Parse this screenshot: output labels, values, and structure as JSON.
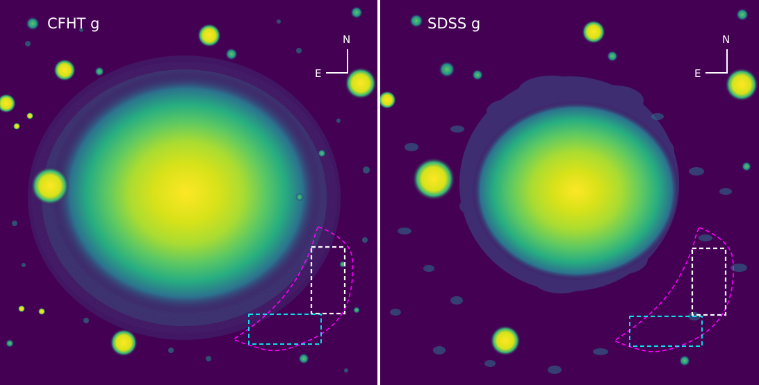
{
  "panels": [
    {
      "title": "CFHT g",
      "compass": {
        "north": "N",
        "east": "E"
      }
    },
    {
      "title": "SDSS g",
      "compass": {
        "north": "N",
        "east": "E"
      }
    }
  ],
  "colors": {
    "background": "#440154",
    "galaxy_core": "#fde725",
    "galaxy_mid": "#7ad151",
    "galaxy_outer": "#22a884",
    "dashed_region": "#ff00ff",
    "white_box": "#ffffff",
    "cyan_box": "#00ffff",
    "label_text": "#ffffff"
  },
  "icons": {
    "compass": "compass-arrows-icon"
  }
}
